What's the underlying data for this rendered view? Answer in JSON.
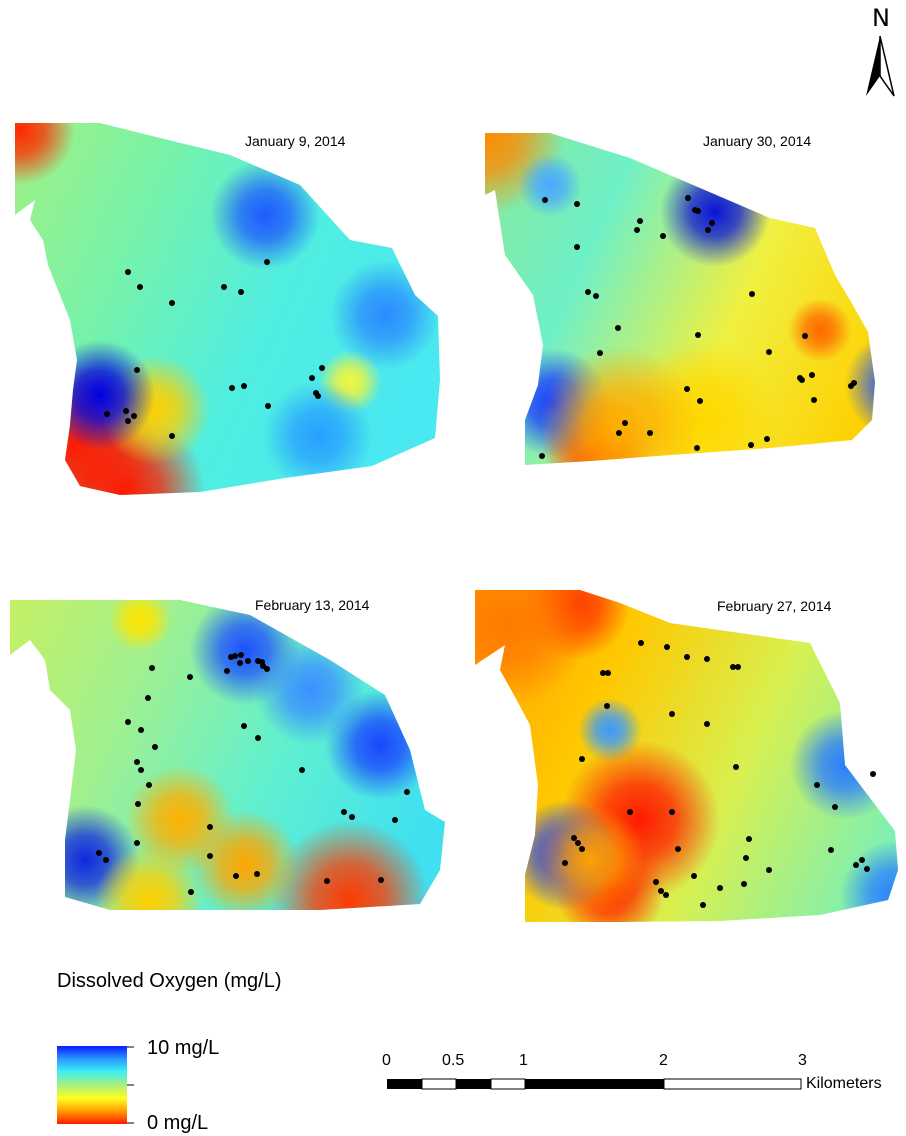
{
  "north_arrow": {
    "letter": "N",
    "icon": "north-arrow-icon"
  },
  "panels": [
    {
      "title": "January 9, 2014",
      "blobs": [
        {
          "color": "#ff1a00",
          "r": "lg"
        },
        {
          "color": "#ff1a00",
          "r": "lg"
        },
        {
          "color": "#ffd000",
          "r": "md"
        },
        {
          "color": "#0000e0",
          "r": "md"
        },
        {
          "color": "#1e5aff",
          "r": "md"
        },
        {
          "color": "#2a8cff",
          "r": "md"
        },
        {
          "color": "#f5f53a",
          "r": "sm"
        },
        {
          "color": "#28a0ff",
          "r": "md"
        },
        {
          "color": "#ff2a00",
          "r": "md"
        }
      ]
    },
    {
      "title": "January 30, 2014",
      "blobs": [
        {
          "color": "#ff8a00",
          "r": "lg"
        },
        {
          "color": "#0a14d8",
          "r": "md"
        },
        {
          "color": "#4aa8ff",
          "r": "sm"
        },
        {
          "color": "#ff6a00",
          "r": "sm"
        },
        {
          "color": "#ff2000",
          "r": "md"
        },
        {
          "color": "#1a3cff",
          "r": "md"
        },
        {
          "color": "#ffd800",
          "r": "lg"
        },
        {
          "color": "#ffb000",
          "r": "lg"
        },
        {
          "color": "#1e50ff",
          "r": "md"
        }
      ]
    },
    {
      "title": "February 13, 2014",
      "blobs": [
        {
          "color": "#ffe600",
          "r": "sm"
        },
        {
          "color": "#1e50ff",
          "r": "md"
        },
        {
          "color": "#1a46ff",
          "r": "md"
        },
        {
          "color": "#ff3a00",
          "r": "lg"
        },
        {
          "color": "#ffb000",
          "r": "md"
        },
        {
          "color": "#ffa600",
          "r": "md"
        },
        {
          "color": "#1028e0",
          "r": "md"
        },
        {
          "color": "#ffcf00",
          "r": "md"
        },
        {
          "color": "#3a90ff",
          "r": "md"
        }
      ]
    },
    {
      "title": "February 27, 2014",
      "blobs": [
        {
          "color": "#ff3a00",
          "r": "md"
        },
        {
          "color": "#ff7a00",
          "r": "lg"
        },
        {
          "color": "#ff1a00",
          "r": "lg"
        },
        {
          "color": "#ff2a00",
          "r": "md"
        },
        {
          "color": "#1a3cff",
          "r": "md"
        },
        {
          "color": "#3a9aff",
          "r": "sm"
        },
        {
          "color": "#2a7cff",
          "r": "md"
        },
        {
          "color": "#ffa000",
          "r": "md"
        },
        {
          "color": "#2a80ff",
          "r": "md"
        }
      ]
    }
  ],
  "legend": {
    "title": "Dissolved Oxygen (mg/L)",
    "high_label": "10 mg/L",
    "low_label": "0 mg/L",
    "colors": [
      "#0a1aff",
      "#2a9cff",
      "#3ef0f0",
      "#a8f080",
      "#ffff20",
      "#ffa000",
      "#ff1a00"
    ]
  },
  "scalebar": {
    "ticks": [
      "0",
      "0.5",
      "1",
      "2",
      "3"
    ],
    "unit": "Kilometers"
  }
}
